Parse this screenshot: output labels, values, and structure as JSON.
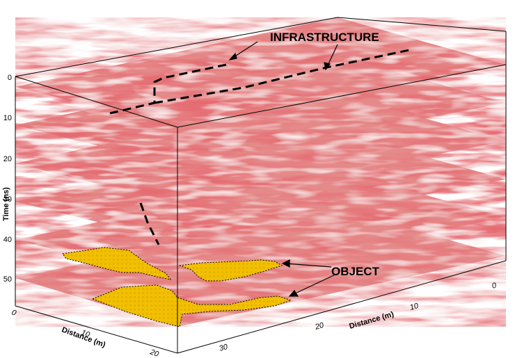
{
  "labels": {
    "infrastructure": "INFRASTRUCTURE",
    "object": "OBJECT"
  },
  "axes": {
    "time": {
      "title": "Time (ns)",
      "ticks": [
        "0",
        "10",
        "20",
        "30",
        "40",
        "50"
      ]
    },
    "distance_left": {
      "title": "Distance (m)",
      "ticks": [
        "0",
        "10",
        "20"
      ]
    },
    "distance_right": {
      "title": "Distance (m)",
      "ticks": [
        "0",
        "10",
        "20",
        "30"
      ]
    }
  },
  "colors": {
    "slice_base": "#e58a8a",
    "slice_dark": "#c0282c",
    "slice_light": "#f6e1e1",
    "object_fill": "#f2c000",
    "box_edge": "#000000"
  }
}
